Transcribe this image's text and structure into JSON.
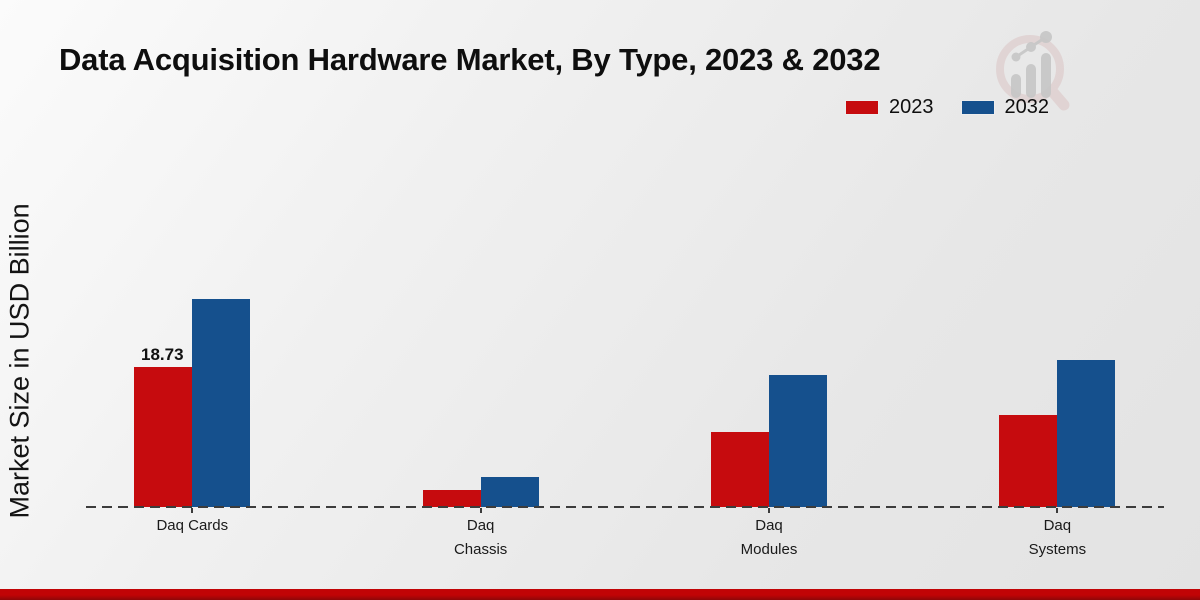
{
  "chart_data": {
    "type": "bar",
    "title": "Data Acquisition Hardware Market, By Type, 2023 & 2032",
    "ylabel": "Market Size in USD Billion",
    "categories": [
      "Daq Cards",
      "Daq Chassis",
      "Daq Modules",
      "Daq Systems"
    ],
    "category_label_lines": [
      [
        "Daq Cards"
      ],
      [
        "Daq",
        "Chassis"
      ],
      [
        "Daq",
        "Modules"
      ],
      [
        "Daq",
        "Systems"
      ]
    ],
    "series": [
      {
        "name": "2023",
        "color": "#c60b0e",
        "values": [
          18.73,
          2.34,
          10.03,
          12.31
        ]
      },
      {
        "name": "2032",
        "color": "#15508d",
        "values": [
          27.83,
          3.95,
          17.66,
          19.67
        ]
      }
    ],
    "value_labels": [
      {
        "series": "2023",
        "category_index": 0,
        "text": "18.73"
      }
    ],
    "legend": {
      "labels": [
        "2023",
        "2032"
      ],
      "position": "top-right"
    },
    "grid": false,
    "baseline_style": "dashed"
  },
  "brand": {
    "footer_color_top": "#c10406",
    "footer_color_bottom": "#8d0708",
    "logo_gray": "#c6c6c6",
    "logo_red": "#d8bcbc"
  }
}
